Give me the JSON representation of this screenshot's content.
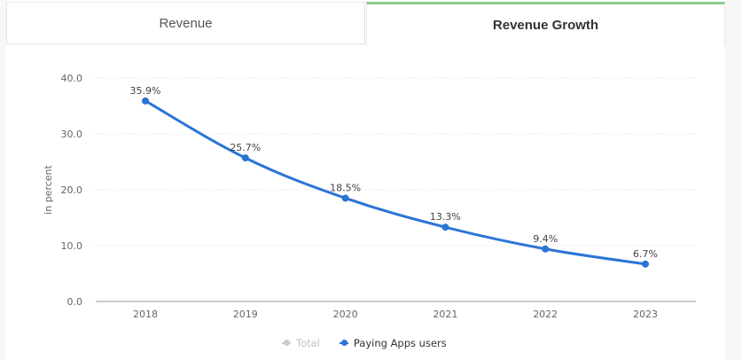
{
  "tabs": [
    {
      "label": "Revenue",
      "active": false
    },
    {
      "label": "Revenue Growth",
      "active": true
    }
  ],
  "colors": {
    "series": "#2a74d6",
    "active_tab_accent": "#8ccb8f",
    "legend_disabled": "#cccccc"
  },
  "legend": [
    {
      "label": "Total",
      "enabled": false
    },
    {
      "label": "Paying Apps users",
      "enabled": true
    }
  ],
  "chart_data": {
    "type": "line",
    "title": "",
    "xlabel": "",
    "ylabel": "in percent",
    "ylim": [
      0,
      40
    ],
    "yticks": [
      "0.0",
      "10.0",
      "20.0",
      "30.0",
      "40.0"
    ],
    "ytick_values": [
      0,
      10,
      20,
      30,
      40
    ],
    "grid": true,
    "legend_position": "bottom-center",
    "categories": [
      "2018",
      "2019",
      "2020",
      "2021",
      "2022",
      "2023"
    ],
    "series": [
      {
        "name": "Paying Apps users",
        "values": [
          35.9,
          25.7,
          18.5,
          13.3,
          9.4,
          6.7
        ],
        "labels": [
          "35.9%",
          "25.7%",
          "18.5%",
          "13.3%",
          "9.4%",
          "6.7%"
        ]
      }
    ]
  }
}
